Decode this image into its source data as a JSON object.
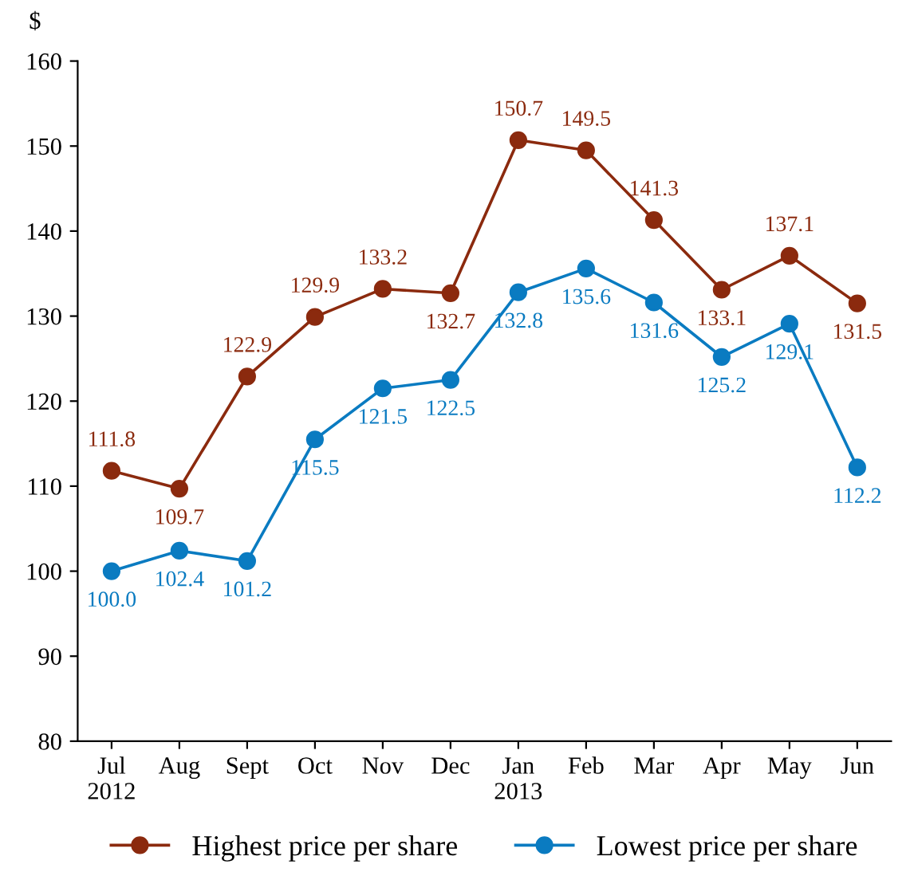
{
  "chart_data": {
    "type": "line",
    "ylabel": "$",
    "categories": [
      "Jul\n2012",
      "Aug",
      "Sept",
      "Oct",
      "Nov",
      "Dec",
      "Jan\n2013",
      "Feb",
      "Mar",
      "Apr",
      "May",
      "Jun"
    ],
    "series": [
      {
        "name": "Highest price per share",
        "color": "#8b2a0e",
        "values": [
          111.8,
          109.7,
          122.9,
          129.9,
          133.2,
          132.7,
          150.7,
          149.5,
          141.3,
          133.1,
          137.1,
          131.5
        ],
        "value_labels": [
          "111.8",
          "109.7",
          "122.9",
          "129.9",
          "133.2",
          "132.7",
          "150.7",
          "149.5",
          "141.3",
          "133.1",
          "137.1",
          "131.5"
        ]
      },
      {
        "name": "Lowest price per share",
        "color": "#0a7bc1",
        "values": [
          100.0,
          102.4,
          101.2,
          115.5,
          121.5,
          122.5,
          132.8,
          135.6,
          131.6,
          125.2,
          129.1,
          112.2
        ],
        "value_labels": [
          "100.0",
          "102.4",
          "101.2",
          "115.5",
          "121.5",
          "122.5",
          "132.8",
          "135.6",
          "131.6",
          "125.2",
          "129.1",
          "112.2"
        ]
      }
    ],
    "ylim": [
      80,
      160
    ],
    "yticks": [
      80,
      90,
      100,
      110,
      120,
      130,
      140,
      150,
      160
    ],
    "grid": false,
    "legend": "bottom",
    "marker": "circle",
    "line_style": "solid"
  }
}
